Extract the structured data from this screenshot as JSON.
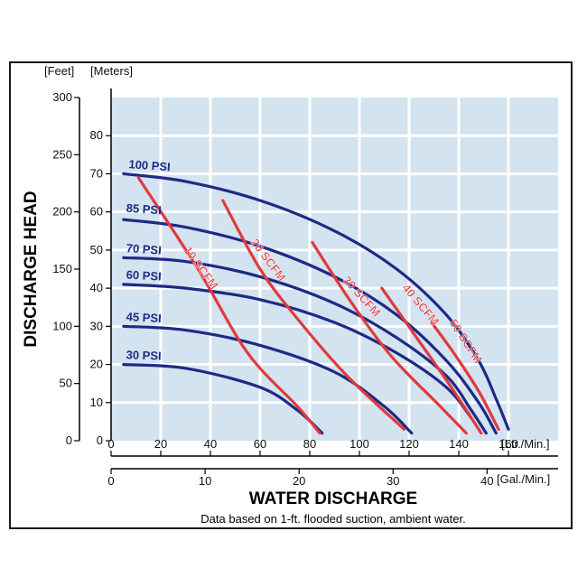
{
  "colors": {
    "panel": "#d3e3f0",
    "grid": "#ffffff",
    "psi": "#1e2a85",
    "scfm": "#e03a3e",
    "axis": "#000000"
  },
  "chart_data": {
    "type": "line",
    "title": "",
    "ylabel": "DISCHARGE HEAD",
    "xlabel": "WATER DISCHARGE",
    "note": "Data based on 1-ft. flooded suction, ambient water.",
    "y_primary": {
      "unit_label": "[Meters]",
      "range": [
        0,
        90
      ],
      "ticks": [
        0,
        10,
        20,
        30,
        40,
        50,
        60,
        70,
        80
      ]
    },
    "y_secondary": {
      "unit_label": "[Feet]",
      "range": [
        0,
        300
      ],
      "ticks": [
        0,
        50,
        100,
        150,
        200,
        250,
        300
      ]
    },
    "x_primary": {
      "unit_label": "[Ltr./Min.]",
      "range": [
        0,
        180
      ],
      "ticks": [
        0,
        20,
        40,
        60,
        80,
        100,
        120,
        140,
        160
      ]
    },
    "x_secondary": {
      "unit_label": "[Gal./Min.]",
      "range": [
        0,
        47.55
      ],
      "ticks": [
        0,
        10,
        20,
        30,
        40
      ]
    },
    "grid": true,
    "series": [
      {
        "name": "100 PSI",
        "kind": "pressure",
        "x": [
          5,
          30,
          60,
          90,
          115,
          135,
          148,
          155,
          160
        ],
        "y": [
          70,
          68,
          63,
          55,
          45,
          33,
          21,
          11,
          3
        ]
      },
      {
        "name": "85 PSI",
        "kind": "pressure",
        "x": [
          5,
          30,
          60,
          90,
          115,
          135,
          148,
          155
        ],
        "y": [
          58,
          56,
          51,
          43,
          33,
          21,
          10,
          2
        ]
      },
      {
        "name": "70 PSI",
        "kind": "pressure",
        "x": [
          5,
          30,
          60,
          90,
          115,
          135,
          145,
          151
        ],
        "y": [
          48,
          47,
          43,
          36,
          27,
          17,
          8,
          2
        ]
      },
      {
        "name": "60 PSI",
        "kind": "pressure",
        "x": [
          5,
          30,
          60,
          90,
          115,
          135,
          145
        ],
        "y": [
          41,
          40,
          37,
          31,
          23,
          14,
          6
        ]
      },
      {
        "name": "45 PSI",
        "kind": "pressure",
        "x": [
          5,
          30,
          60,
          90,
          110,
          121
        ],
        "y": [
          30,
          29,
          25,
          18,
          9,
          2
        ]
      },
      {
        "name": "30 PSI",
        "kind": "pressure",
        "x": [
          5,
          30,
          60,
          75,
          85
        ],
        "y": [
          20,
          19,
          14,
          8,
          2
        ]
      },
      {
        "name": "10 SCFM",
        "kind": "air",
        "x": [
          11,
          35,
          55,
          75,
          84
        ],
        "y": [
          69,
          45,
          23,
          9,
          2
        ]
      },
      {
        "name": "20 SCFM",
        "kind": "air",
        "x": [
          45,
          60,
          75,
          95,
          118
        ],
        "y": [
          63,
          45,
          32,
          17,
          3
        ]
      },
      {
        "name": "30 SCFM",
        "kind": "air",
        "x": [
          81,
          97,
          113,
          131,
          143
        ],
        "y": [
          52,
          36,
          22,
          10,
          2
        ]
      },
      {
        "name": "40 SCFM",
        "kind": "air",
        "x": [
          109,
          122,
          137,
          149
        ],
        "y": [
          40,
          28,
          14,
          2
        ]
      },
      {
        "name": "50 SCFM",
        "kind": "air",
        "x": [
          129,
          138,
          148,
          156
        ],
        "y": [
          31,
          23,
          13,
          3
        ]
      }
    ],
    "labels": [
      {
        "text": "100 PSI",
        "x": 7,
        "y": 71.5,
        "angle": 4
      },
      {
        "text": "85 PSI",
        "x": 6,
        "y": 60,
        "angle": 4
      },
      {
        "text": "70 PSI",
        "x": 6,
        "y": 49.5,
        "angle": 4
      },
      {
        "text": "60 PSI",
        "x": 6,
        "y": 42.5,
        "angle": 3
      },
      {
        "text": "45 PSI",
        "x": 6,
        "y": 31.5,
        "angle": 3
      },
      {
        "text": "30 PSI",
        "x": 6,
        "y": 21.5,
        "angle": 2
      },
      {
        "text": "10 SCFM",
        "x": 29,
        "y": 50,
        "angle": 54
      },
      {
        "text": "20 SCFM",
        "x": 56,
        "y": 52,
        "angle": 53
      },
      {
        "text": "30 SCFM",
        "x": 93,
        "y": 42,
        "angle": 48
      },
      {
        "text": "40 SCFM",
        "x": 117,
        "y": 40,
        "angle": 50
      },
      {
        "text": "50 SCFM",
        "x": 136,
        "y": 31,
        "angle": 57
      }
    ]
  }
}
